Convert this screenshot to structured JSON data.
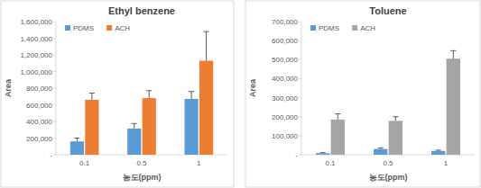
{
  "chart_data": [
    {
      "type": "bar",
      "title": "Ethyl benzene",
      "x_label": "농도(ppm)",
      "y_label": "Area",
      "categories": [
        "0.1",
        "0.5",
        "1"
      ],
      "series": [
        {
          "name": "PDMS",
          "color": "#5b9bd5",
          "values": [
            160000,
            315000,
            670000
          ],
          "errors": [
            40000,
            60000,
            90000
          ]
        },
        {
          "name": "ACH",
          "color": "#ed7d31",
          "values": [
            660000,
            680000,
            1130000
          ],
          "errors": [
            80000,
            90000,
            350000
          ]
        }
      ],
      "ylim": [
        0,
        1600000
      ],
      "yticks": [
        {
          "value": 0,
          "label": "-"
        },
        {
          "value": 200000,
          "label": "200,000"
        },
        {
          "value": 400000,
          "label": "400,000"
        },
        {
          "value": 600000,
          "label": "600,000"
        },
        {
          "value": 800000,
          "label": "800,000"
        },
        {
          "value": 1000000,
          "label": "1,000,000"
        },
        {
          "value": 1200000,
          "label": "1,200,000"
        },
        {
          "value": 1400000,
          "label": "1,400,000"
        },
        {
          "value": 1600000,
          "label": "1,600,000"
        }
      ],
      "grid": false,
      "legend": "top-left"
    },
    {
      "type": "bar",
      "title": "Toluene",
      "x_label": "농도(ppm)",
      "y_label": "Area",
      "categories": [
        "0.1",
        "0.5",
        "1"
      ],
      "series": [
        {
          "name": "PDMS",
          "color": "#5b9bd5",
          "values": [
            8000,
            30000,
            20000
          ],
          "errors": [
            3000,
            5000,
            4000
          ]
        },
        {
          "name": "ACH",
          "color": "#a5a5a5",
          "values": [
            185000,
            178000,
            505000
          ],
          "errors": [
            30000,
            22000,
            42000
          ]
        }
      ],
      "ylim": [
        0,
        700000
      ],
      "yticks": [
        {
          "value": 0,
          "label": "-"
        },
        {
          "value": 100000,
          "label": "100,000"
        },
        {
          "value": 200000,
          "label": "200,000"
        },
        {
          "value": 300000,
          "label": "300,000"
        },
        {
          "value": 400000,
          "label": "400,000"
        },
        {
          "value": 500000,
          "label": "500,000"
        },
        {
          "value": 600000,
          "label": "600,000"
        },
        {
          "value": 700000,
          "label": "700,000"
        }
      ],
      "grid": false,
      "legend": "top-left"
    }
  ]
}
